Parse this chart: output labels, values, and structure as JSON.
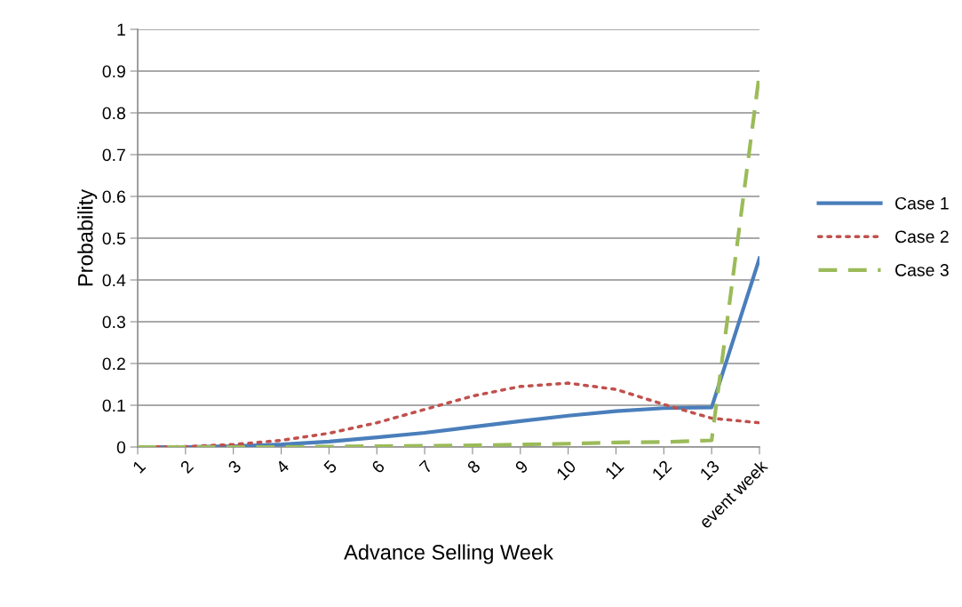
{
  "chart_data": {
    "type": "line",
    "xlabel": "Advance Selling Week",
    "ylabel": "Probability",
    "categories": [
      "1",
      "2",
      "3",
      "4",
      "5",
      "6",
      "7",
      "8",
      "9",
      "10",
      "11",
      "12",
      "13",
      "event week"
    ],
    "ylim": [
      0,
      1
    ],
    "yticks": [
      0,
      0.1,
      0.2,
      0.3,
      0.4,
      0.5,
      0.6,
      0.7,
      0.8,
      0.9,
      1
    ],
    "grid": "y",
    "legend": "right",
    "marker": "none",
    "series": [
      {
        "name": "Case 1",
        "color": "#4a7ebb",
        "line_style": "solid",
        "values": [
          0,
          0,
          0.002,
          0.006,
          0.013,
          0.023,
          0.034,
          0.048,
          0.062,
          0.075,
          0.086,
          0.093,
          0.095,
          0.452
        ]
      },
      {
        "name": "Case 2",
        "color": "#c0504d",
        "line_style": "dotted",
        "values": [
          0,
          0.001,
          0.006,
          0.016,
          0.033,
          0.058,
          0.09,
          0.122,
          0.145,
          0.153,
          0.138,
          0.102,
          0.069,
          0.058
        ]
      },
      {
        "name": "Case 3",
        "color": "#9bbb59",
        "line_style": "dashed",
        "values": [
          0,
          0,
          0,
          0,
          0.001,
          0.002,
          0.003,
          0.004,
          0.006,
          0.008,
          0.011,
          0.012,
          0.016,
          0.895
        ]
      }
    ]
  }
}
